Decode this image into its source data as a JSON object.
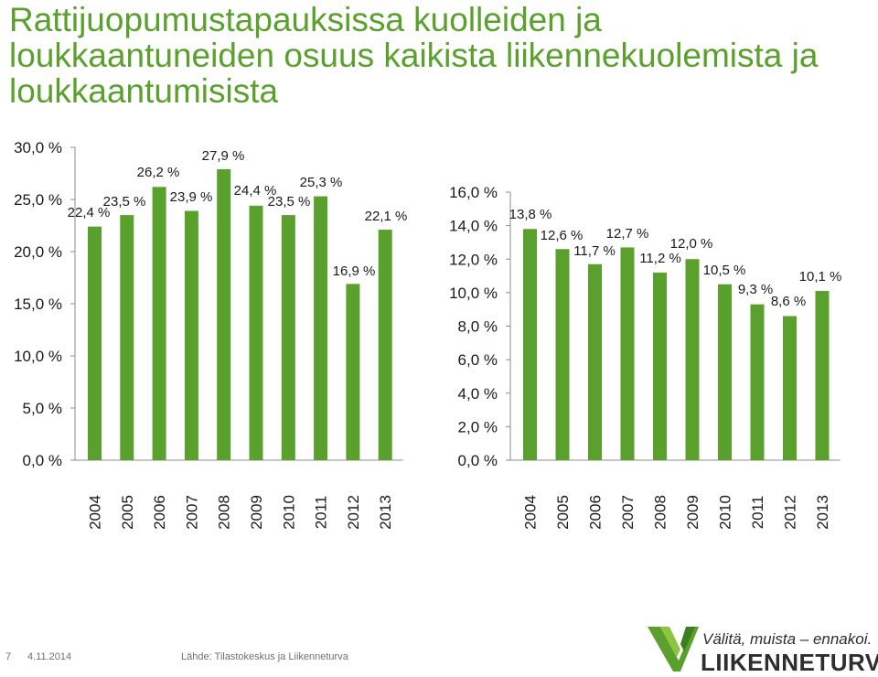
{
  "title": "Rattijuopumustapauksissa kuolleiden ja loukkaantuneiden osuus kaikista liikennekuolemista ja loukkaantumisista",
  "colors": {
    "bar": "#5aa02c",
    "title": "#5aa02c",
    "text": "#1a1a1a",
    "axis": "#8c8c8c"
  },
  "chart_data": [
    {
      "type": "bar",
      "categories": [
        "2004",
        "2005",
        "2006",
        "2007",
        "2008",
        "2009",
        "2010",
        "2011",
        "2012",
        "2013"
      ],
      "values": [
        22.4,
        23.5,
        26.2,
        23.9,
        27.9,
        24.4,
        23.5,
        25.3,
        16.9,
        22.1
      ],
      "data_labels": [
        "22,4 %",
        "23,5 %",
        "26,2 %",
        "23,9 %",
        "27,9 %",
        "24,4 %",
        "23,5 %",
        "25,3 %",
        "16,9 %",
        "22,1 %"
      ],
      "ylim": [
        0,
        30
      ],
      "yticks": [
        0,
        5,
        10,
        15,
        20,
        25,
        30
      ],
      "ytick_labels": [
        "0,0 %",
        "5,0 %",
        "10,0 %",
        "15,0 %",
        "20,0 %",
        "25,0 %",
        "30,0 %"
      ],
      "grid": false,
      "legend": false
    },
    {
      "type": "bar",
      "categories": [
        "2004",
        "2005",
        "2006",
        "2007",
        "2008",
        "2009",
        "2010",
        "2011",
        "2012",
        "2013"
      ],
      "values": [
        13.8,
        12.6,
        11.7,
        12.7,
        11.2,
        12.0,
        10.5,
        9.3,
        8.6,
        10.1
      ],
      "data_labels": [
        "13,8 %",
        "12,6 %",
        "11,7 %",
        "12,7 %",
        "11,2 %",
        "12,0 %",
        "10,5 %",
        "9,3 %",
        "8,6 %",
        "10,1 %"
      ],
      "ylim": [
        0,
        16
      ],
      "yticks": [
        0,
        2,
        4,
        6,
        8,
        10,
        12,
        14,
        16
      ],
      "ytick_labels": [
        "0,0 %",
        "2,0 %",
        "4,0 %",
        "6,0 %",
        "8,0 %",
        "10,0 %",
        "12,0 %",
        "14,0 %",
        "16,0 %"
      ],
      "grid": false,
      "legend": false
    }
  ],
  "footer": {
    "page_number": "7",
    "date": "4.11.2014",
    "source": "Lähde: Tilastokeskus ja Liikenneturva"
  },
  "logo": {
    "slogan": "Välitä, muista – ennakoi.",
    "brand": "LIIKENNETURVA"
  }
}
